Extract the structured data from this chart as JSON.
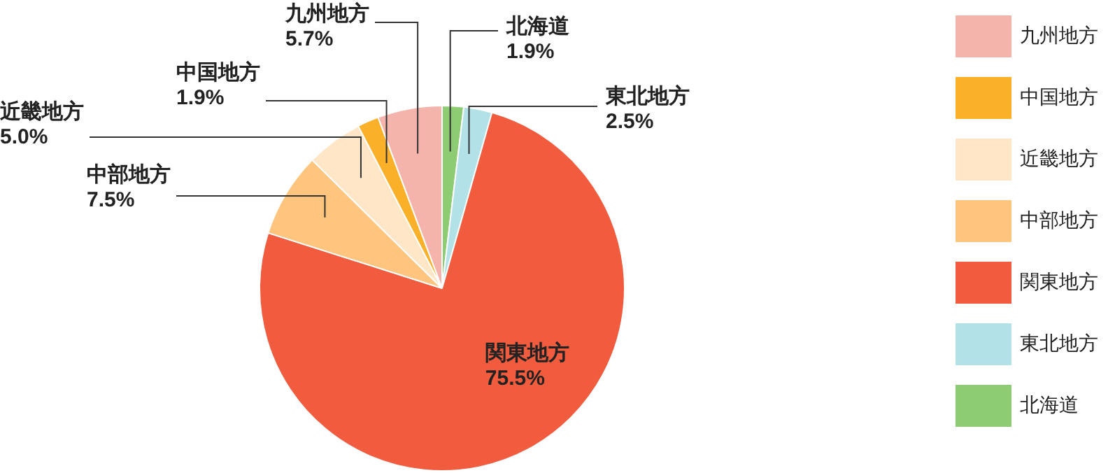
{
  "chart_data": {
    "type": "pie",
    "categories": [
      "北海道",
      "東北地方",
      "関東地方",
      "中部地方",
      "近畿地方",
      "中国地方",
      "九州地方"
    ],
    "values": [
      1.9,
      2.5,
      75.5,
      7.5,
      5.0,
      1.9,
      5.7
    ],
    "value_labels": [
      "1.9%",
      "2.5%",
      "75.5%",
      "7.5%",
      "5.0%",
      "1.9%",
      "5.7%"
    ],
    "colors": [
      "#8dcc72",
      "#b2e2e8",
      "#f15b3e",
      "#ffc57e",
      "#fee6c6",
      "#fbb02a",
      "#f4b3ab"
    ],
    "legend": "right"
  }
}
